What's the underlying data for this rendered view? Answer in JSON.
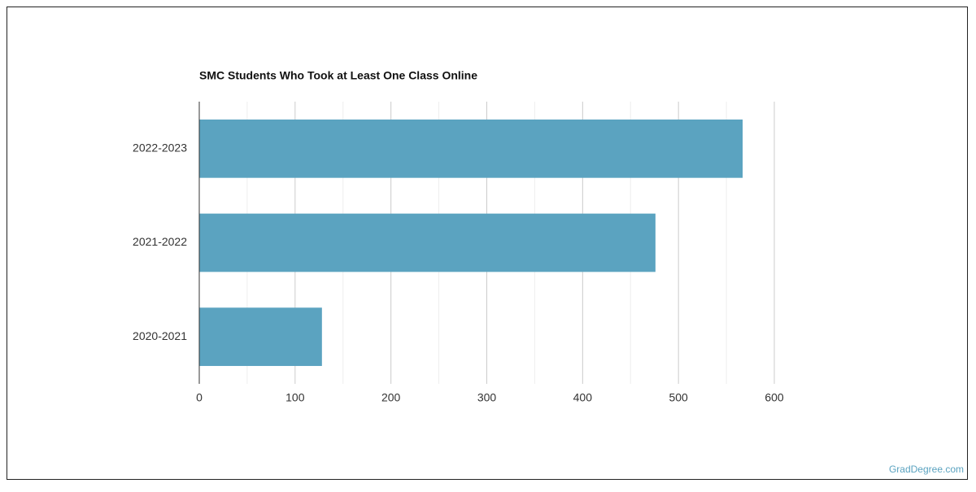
{
  "chart_data": {
    "type": "bar",
    "orientation": "horizontal",
    "title": "SMC Students Who Took at Least One Class Online",
    "categories": [
      "2022-2023",
      "2021-2022",
      "2020-2021"
    ],
    "values": [
      567,
      476,
      128
    ],
    "color": "#5ba3c0",
    "xlim": [
      0,
      600
    ],
    "xticks": [
      0,
      100,
      200,
      300,
      400,
      500,
      600
    ],
    "xminorticks": [
      50,
      150,
      250,
      350,
      450,
      550
    ],
    "grid": true,
    "source": "GradDegree.com"
  }
}
